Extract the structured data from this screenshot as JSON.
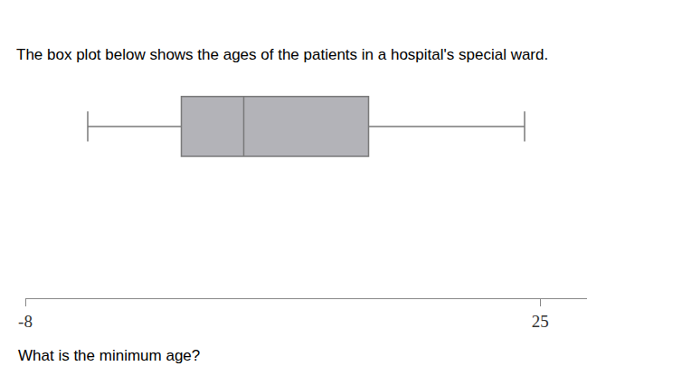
{
  "chart_data": {
    "type": "box",
    "title": "The box plot below shows the ages of the patients in a hospital's special ward.",
    "annotations": [
      "What is the minimum age?"
    ],
    "min": -4,
    "q1": 2,
    "median": 6,
    "q3": 14,
    "max": 24,
    "orientation": "horizontal",
    "color": "#b3b3b8",
    "xlim": [
      -8,
      28
    ],
    "xticks": [
      -8,
      25
    ],
    "grid": false,
    "tick_labels": "x"
  }
}
